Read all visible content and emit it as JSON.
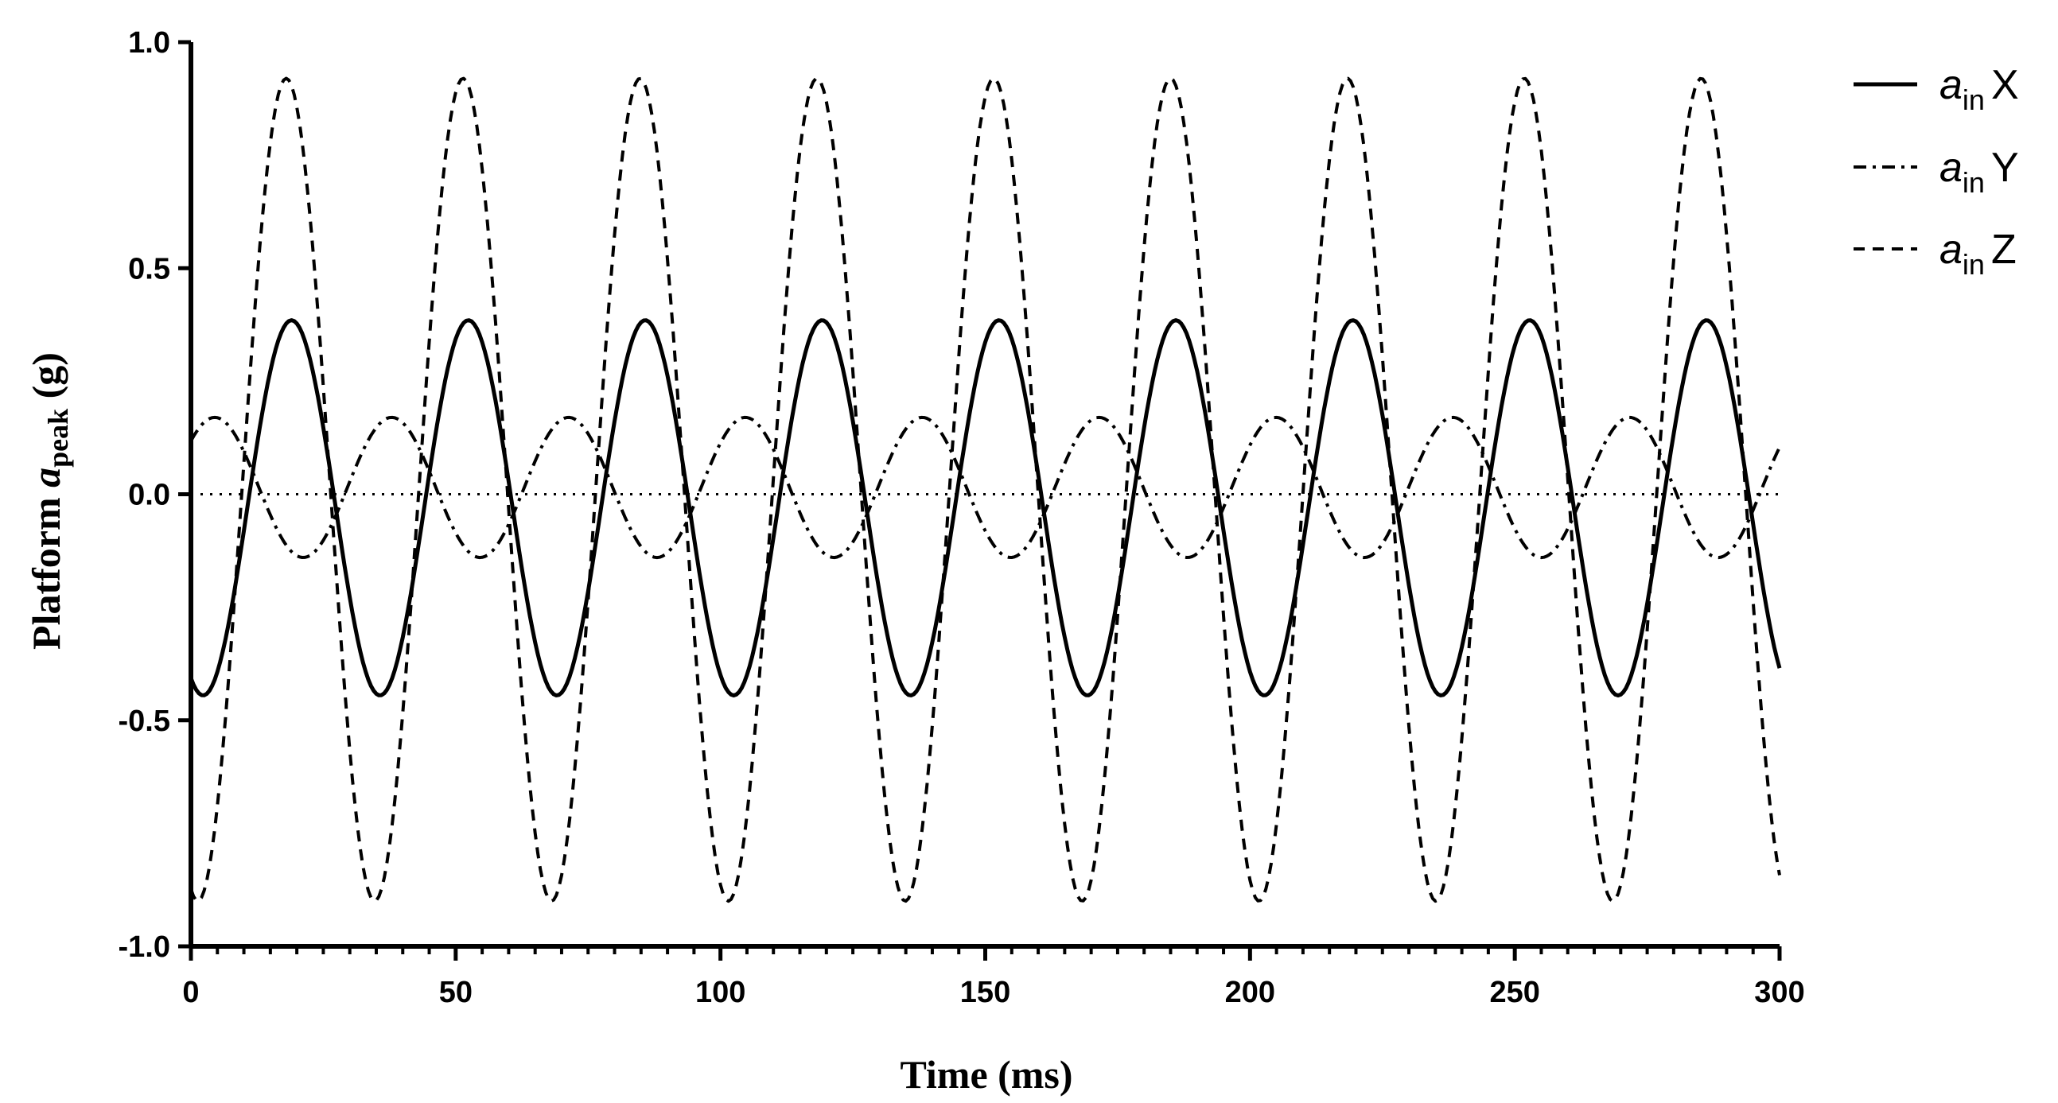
{
  "chart_data": {
    "type": "line",
    "title": "",
    "xlabel": "Time (ms)",
    "ylabel": {
      "prefix": "Platform ",
      "variable": "a",
      "subscript": "peak",
      "suffix": " (g)"
    },
    "xlim": [
      0,
      300
    ],
    "ylim": [
      -1.0,
      1.0
    ],
    "xticks": [
      "0",
      "50",
      "100",
      "150",
      "200",
      "250",
      "300"
    ],
    "xtick_values": [
      0,
      50,
      100,
      150,
      200,
      250,
      300
    ],
    "yticks": [
      "-1.0",
      "-0.5",
      "0.0",
      "0.5",
      "1.0"
    ],
    "ytick_values": [
      -1.0,
      -0.5,
      0.0,
      0.5,
      1.0
    ],
    "x_minor_step": 5,
    "reference_line": {
      "y": 0.0,
      "style": "dotted"
    },
    "grid": false,
    "legend_position": "top-right",
    "series": [
      {
        "name": "X",
        "legend_var": "a",
        "legend_sub": "in",
        "style": "solid",
        "color": "#000000",
        "model": {
          "offset": -0.03,
          "amplitude": 0.415,
          "period_ms": 33.4,
          "phase_ms": 19.0
        },
        "peaks_ms": [
          19,
          52,
          86,
          119,
          152,
          186,
          219,
          253,
          286
        ],
        "start_value": -0.44,
        "end_value": -0.38
      },
      {
        "name": "Y",
        "legend_var": "a",
        "legend_sub": "in",
        "style": "dashdot",
        "color": "#000000",
        "model": {
          "offset": 0.015,
          "amplitude": 0.155,
          "period_ms": 33.4,
          "phase_ms": 4.5
        },
        "peaks_ms": [
          4,
          38,
          71,
          104,
          138,
          171,
          205,
          238,
          271
        ],
        "start_value": 0.15,
        "end_value": 0.09
      },
      {
        "name": "Z",
        "legend_var": "a",
        "legend_sub": "in",
        "style": "dashed",
        "color": "#000000",
        "model": {
          "offset": 0.01,
          "amplitude": 0.91,
          "period_ms": 33.4,
          "phase_ms": 18.0
        },
        "peaks_ms": [
          17,
          51,
          84,
          118,
          151,
          184,
          218,
          251,
          285
        ],
        "troughs_ms": [
          34,
          67,
          101,
          134,
          167,
          201,
          234,
          268
        ],
        "start_value": -0.88,
        "end_value": -0.84
      }
    ]
  }
}
